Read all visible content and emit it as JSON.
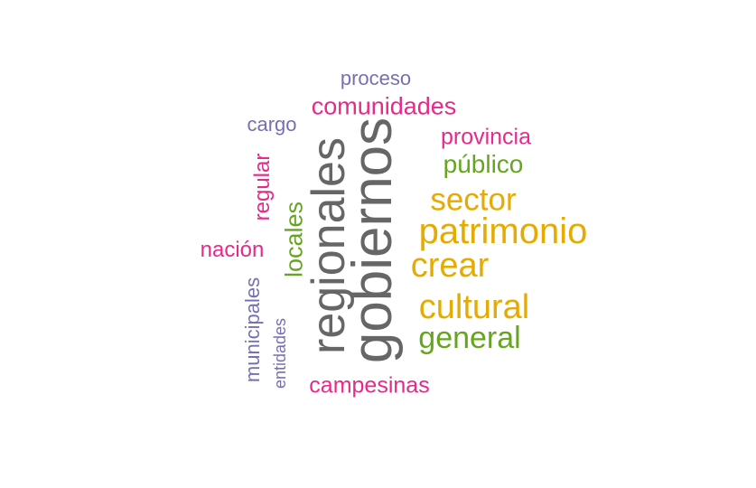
{
  "words": [
    {
      "id": "gobiernos",
      "text": "gobiernos",
      "color": "#666666",
      "orientation": "vertical"
    },
    {
      "id": "regionales",
      "text": "regionales",
      "color": "#666666",
      "orientation": "vertical"
    },
    {
      "id": "patrimonio",
      "text": "patrimonio",
      "color": "#E6AB02",
      "orientation": "horizontal"
    },
    {
      "id": "cultural",
      "text": "cultural",
      "color": "#E6AB02",
      "orientation": "horizontal"
    },
    {
      "id": "crear",
      "text": "crear",
      "color": "#E6AB02",
      "orientation": "horizontal"
    },
    {
      "id": "sector",
      "text": "sector",
      "color": "#E6AB02",
      "orientation": "horizontal"
    },
    {
      "id": "general",
      "text": "general",
      "color": "#66A61E",
      "orientation": "horizontal"
    },
    {
      "id": "publico",
      "text": "público",
      "color": "#66A61E",
      "orientation": "horizontal"
    },
    {
      "id": "locales",
      "text": "locales",
      "color": "#66A61E",
      "orientation": "vertical"
    },
    {
      "id": "comunidades",
      "text": "comunidades",
      "color": "#E7298A",
      "orientation": "horizontal"
    },
    {
      "id": "provincia",
      "text": "provincia",
      "color": "#E7298A",
      "orientation": "horizontal"
    },
    {
      "id": "campesinas",
      "text": "campesinas",
      "color": "#E7298A",
      "orientation": "horizontal"
    },
    {
      "id": "nacion",
      "text": "nación",
      "color": "#E7298A",
      "orientation": "horizontal"
    },
    {
      "id": "regular",
      "text": "regular",
      "color": "#E7298A",
      "orientation": "vertical"
    },
    {
      "id": "proceso",
      "text": "proceso",
      "color": "#7570B3",
      "orientation": "horizontal"
    },
    {
      "id": "cargo",
      "text": "cargo",
      "color": "#7570B3",
      "orientation": "horizontal"
    },
    {
      "id": "municipales",
      "text": "municipales",
      "color": "#7570B3",
      "orientation": "vertical"
    },
    {
      "id": "entidades",
      "text": "entidades",
      "color": "#7570B3",
      "orientation": "vertical"
    }
  ]
}
